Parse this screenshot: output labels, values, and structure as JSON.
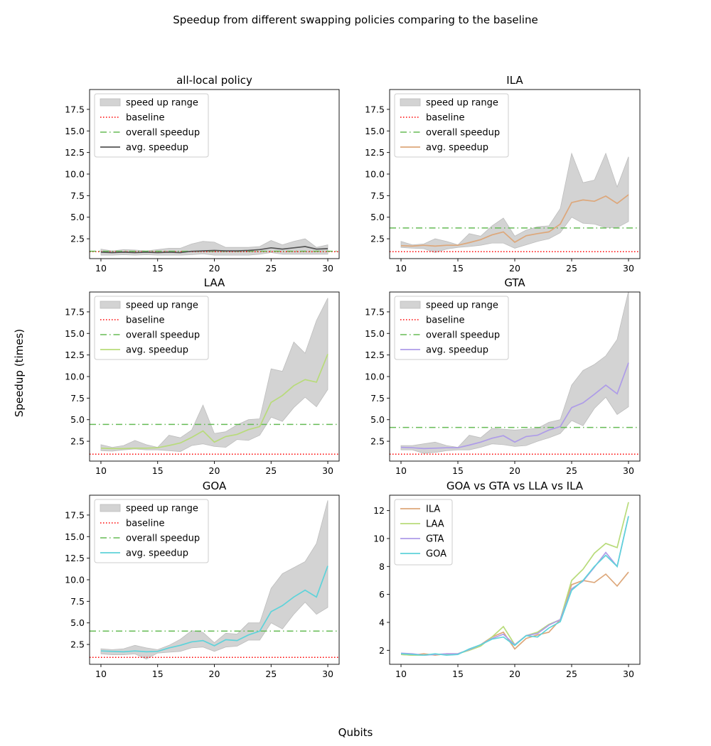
{
  "suptitle": "Speedup from different swapping policies comparing to the baseline",
  "xlabel": "Qubits",
  "ylabel": "Speedup (times)",
  "colors": {
    "range_fill": "#d3d3d3",
    "range_edge": "#bdbdbd",
    "baseline": "#ff0000",
    "overall": "#66bb55",
    "all_local": "#555555",
    "ILA": "#dda77a",
    "LAA": "#b8db7a",
    "GTA": "#ae9ce8",
    "GOA": "#5ed3da"
  },
  "legend_labels": {
    "range": "speed up range",
    "baseline": "baseline",
    "overall": "overall speedup",
    "avg": "avg. speedup"
  },
  "chart_data": [
    {
      "type": "line",
      "title": "all-local policy",
      "x": [
        10,
        11,
        12,
        13,
        14,
        15,
        16,
        17,
        18,
        19,
        20,
        21,
        22,
        23,
        24,
        25,
        26,
        27,
        28,
        29,
        30
      ],
      "avg": [
        0.95,
        0.9,
        0.95,
        0.9,
        0.95,
        0.9,
        0.95,
        0.9,
        1.05,
        1.1,
        1.15,
        1.1,
        1.1,
        1.15,
        1.25,
        1.45,
        1.3,
        1.45,
        1.6,
        1.3,
        1.35
      ],
      "range_low": [
        0.6,
        0.6,
        0.65,
        0.6,
        0.65,
        0.6,
        0.6,
        0.6,
        0.65,
        0.75,
        0.6,
        0.6,
        0.6,
        0.6,
        0.7,
        0.9,
        0.7,
        0.7,
        0.7,
        0.7,
        0.7
      ],
      "range_high": [
        1.3,
        1.1,
        1.25,
        1.2,
        1.1,
        1.25,
        1.4,
        1.4,
        1.9,
        2.2,
        2.1,
        1.5,
        1.5,
        1.5,
        1.6,
        2.3,
        1.8,
        2.2,
        2.5,
        1.5,
        1.8
      ],
      "baseline": 1.0,
      "overall": 1.05,
      "ylim": [
        0.2,
        19.8
      ],
      "yticks": [
        2.5,
        5.0,
        7.5,
        10.0,
        12.5,
        15.0,
        17.5
      ],
      "xticks": [
        10,
        15,
        20,
        25,
        30
      ],
      "avg_color_key": "all_local",
      "legend_position": "upper left"
    },
    {
      "type": "line",
      "title": "ILA",
      "x": [
        10,
        11,
        12,
        13,
        14,
        15,
        16,
        17,
        18,
        19,
        20,
        21,
        22,
        23,
        24,
        25,
        26,
        27,
        28,
        29,
        30
      ],
      "avg": [
        1.7,
        1.65,
        1.75,
        1.65,
        1.75,
        1.75,
        2.05,
        2.4,
        2.95,
        3.3,
        2.1,
        2.85,
        3.1,
        3.3,
        4.2,
        6.7,
        7.0,
        6.85,
        7.45,
        6.6,
        7.6
      ],
      "range_low": [
        1.5,
        1.4,
        1.35,
        0.9,
        1.3,
        1.5,
        1.6,
        1.75,
        2.0,
        2.0,
        1.4,
        1.8,
        2.2,
        2.5,
        3.2,
        5.0,
        4.3,
        4.2,
        3.8,
        3.8,
        4.5
      ],
      "range_high": [
        2.2,
        1.8,
        1.9,
        2.5,
        2.2,
        1.8,
        3.1,
        2.8,
        4.0,
        4.9,
        2.8,
        3.5,
        3.9,
        4.0,
        6.0,
        12.4,
        9.0,
        9.3,
        12.4,
        8.5,
        12.0
      ],
      "baseline": 1.0,
      "overall": 3.75,
      "ylim": [
        0.2,
        19.8
      ],
      "yticks": [
        2.5,
        5.0,
        7.5,
        10.0,
        12.5,
        15.0,
        17.5
      ],
      "xticks": [
        10,
        15,
        20,
        25,
        30
      ],
      "avg_color_key": "ILA",
      "legend_position": "upper left"
    },
    {
      "type": "line",
      "title": "LAA",
      "x": [
        10,
        11,
        12,
        13,
        14,
        15,
        16,
        17,
        18,
        19,
        20,
        21,
        22,
        23,
        24,
        25,
        26,
        27,
        28,
        29,
        30
      ],
      "avg": [
        1.7,
        1.65,
        1.65,
        1.7,
        1.7,
        1.75,
        2.0,
        2.3,
        2.95,
        3.7,
        2.4,
        3.05,
        3.3,
        3.85,
        4.2,
        7.0,
        7.8,
        8.95,
        9.65,
        9.35,
        12.6
      ],
      "range_low": [
        1.4,
        1.35,
        1.5,
        1.6,
        1.5,
        1.5,
        1.4,
        1.3,
        2.0,
        2.2,
        1.9,
        1.8,
        2.7,
        2.6,
        3.2,
        5.3,
        4.8,
        6.4,
        7.6,
        6.5,
        8.5
      ],
      "range_high": [
        2.1,
        1.8,
        2.0,
        2.6,
        2.1,
        1.8,
        3.2,
        2.9,
        3.8,
        6.7,
        3.4,
        3.6,
        4.4,
        5.0,
        5.1,
        10.9,
        10.6,
        14.0,
        12.7,
        16.5,
        19.1
      ],
      "baseline": 1.0,
      "overall": 4.45,
      "ylim": [
        0.2,
        19.8
      ],
      "yticks": [
        2.5,
        5.0,
        7.5,
        10.0,
        12.5,
        15.0,
        17.5
      ],
      "xticks": [
        10,
        15,
        20,
        25,
        30
      ],
      "avg_color_key": "LAA",
      "legend_position": "upper left"
    },
    {
      "type": "line",
      "title": "GTA",
      "x": [
        10,
        11,
        12,
        13,
        14,
        15,
        16,
        17,
        18,
        19,
        20,
        21,
        22,
        23,
        24,
        25,
        26,
        27,
        28,
        29,
        30
      ],
      "avg": [
        1.8,
        1.75,
        1.65,
        1.7,
        1.75,
        1.75,
        2.05,
        2.4,
        2.85,
        3.15,
        2.4,
        3.05,
        3.2,
        3.8,
        4.2,
        6.4,
        6.95,
        7.95,
        9.0,
        8.0,
        11.6
      ],
      "range_low": [
        1.5,
        1.5,
        1.1,
        1.2,
        1.4,
        1.5,
        1.5,
        1.8,
        2.2,
        2.1,
        1.9,
        2.0,
        2.5,
        2.9,
        3.4,
        4.9,
        4.3,
        6.3,
        7.6,
        5.6,
        6.5
      ],
      "range_high": [
        2.0,
        2.0,
        2.2,
        2.4,
        2.0,
        1.8,
        3.2,
        2.9,
        4.0,
        3.9,
        3.8,
        3.9,
        4.0,
        4.7,
        5.0,
        9.0,
        10.7,
        11.4,
        12.4,
        14.3,
        19.9
      ],
      "baseline": 1.0,
      "overall": 4.1,
      "ylim": [
        0.2,
        19.8
      ],
      "yticks": [
        2.5,
        5.0,
        7.5,
        10.0,
        12.5,
        15.0,
        17.5
      ],
      "xticks": [
        10,
        15,
        20,
        25,
        30
      ],
      "avg_color_key": "GTA",
      "legend_position": "upper left"
    },
    {
      "type": "line",
      "title": "GOA",
      "x": [
        10,
        11,
        12,
        13,
        14,
        15,
        16,
        17,
        18,
        19,
        20,
        21,
        22,
        23,
        24,
        25,
        26,
        27,
        28,
        29,
        30
      ],
      "avg": [
        1.75,
        1.7,
        1.65,
        1.75,
        1.65,
        1.7,
        2.1,
        2.4,
        2.8,
        2.95,
        2.35,
        3.05,
        2.95,
        3.6,
        4.05,
        6.3,
        7.0,
        8.0,
        8.8,
        8.0,
        11.6
      ],
      "range_low": [
        1.4,
        1.3,
        1.3,
        1.4,
        0.8,
        1.5,
        1.6,
        1.7,
        2.1,
        2.2,
        1.7,
        2.2,
        2.3,
        3.0,
        3.0,
        5.0,
        4.3,
        6.0,
        7.4,
        6.0,
        6.8
      ],
      "range_high": [
        2.0,
        1.9,
        2.0,
        2.4,
        2.1,
        1.9,
        2.4,
        3.1,
        4.1,
        3.9,
        2.7,
        3.8,
        3.7,
        5.0,
        5.0,
        9.0,
        10.7,
        11.4,
        12.1,
        14.2,
        19.2
      ],
      "baseline": 1.0,
      "overall": 4.05,
      "ylim": [
        0.2,
        19.8
      ],
      "yticks": [
        2.5,
        5.0,
        7.5,
        10.0,
        12.5,
        15.0,
        17.5
      ],
      "xticks": [
        10,
        15,
        20,
        25,
        30
      ],
      "avg_color_key": "GOA",
      "legend_position": "upper left"
    },
    {
      "type": "line",
      "title": "GOA vs GTA vs LLA vs ILA",
      "x": [
        10,
        11,
        12,
        13,
        14,
        15,
        16,
        17,
        18,
        19,
        20,
        21,
        22,
        23,
        24,
        25,
        26,
        27,
        28,
        29,
        30
      ],
      "series": [
        {
          "name": "ILA",
          "color_key": "ILA",
          "values": [
            1.7,
            1.65,
            1.75,
            1.65,
            1.75,
            1.75,
            2.05,
            2.4,
            2.95,
            3.3,
            2.1,
            2.85,
            3.1,
            3.3,
            4.2,
            6.7,
            7.0,
            6.85,
            7.45,
            6.6,
            7.6
          ]
        },
        {
          "name": "LAA",
          "color_key": "LAA",
          "values": [
            1.7,
            1.65,
            1.65,
            1.7,
            1.7,
            1.75,
            2.0,
            2.3,
            2.95,
            3.7,
            2.4,
            3.05,
            3.3,
            3.85,
            4.2,
            7.0,
            7.8,
            8.95,
            9.65,
            9.35,
            12.6
          ]
        },
        {
          "name": "GTA",
          "color_key": "GTA",
          "values": [
            1.8,
            1.75,
            1.65,
            1.7,
            1.75,
            1.75,
            2.05,
            2.4,
            2.85,
            3.15,
            2.4,
            3.05,
            3.2,
            3.8,
            4.2,
            6.4,
            6.95,
            7.95,
            9.0,
            8.0,
            11.6
          ]
        },
        {
          "name": "GOA",
          "color_key": "GOA",
          "values": [
            1.75,
            1.7,
            1.65,
            1.75,
            1.65,
            1.7,
            2.1,
            2.4,
            2.8,
            2.95,
            2.35,
            3.05,
            2.95,
            3.6,
            4.05,
            6.3,
            7.0,
            8.0,
            8.8,
            8.0,
            11.6
          ]
        }
      ],
      "ylim": [
        1.0,
        13.1
      ],
      "yticks": [
        2,
        4,
        6,
        8,
        10,
        12
      ],
      "xticks": [
        10,
        15,
        20,
        25,
        30
      ],
      "legend_position": "upper left"
    }
  ]
}
